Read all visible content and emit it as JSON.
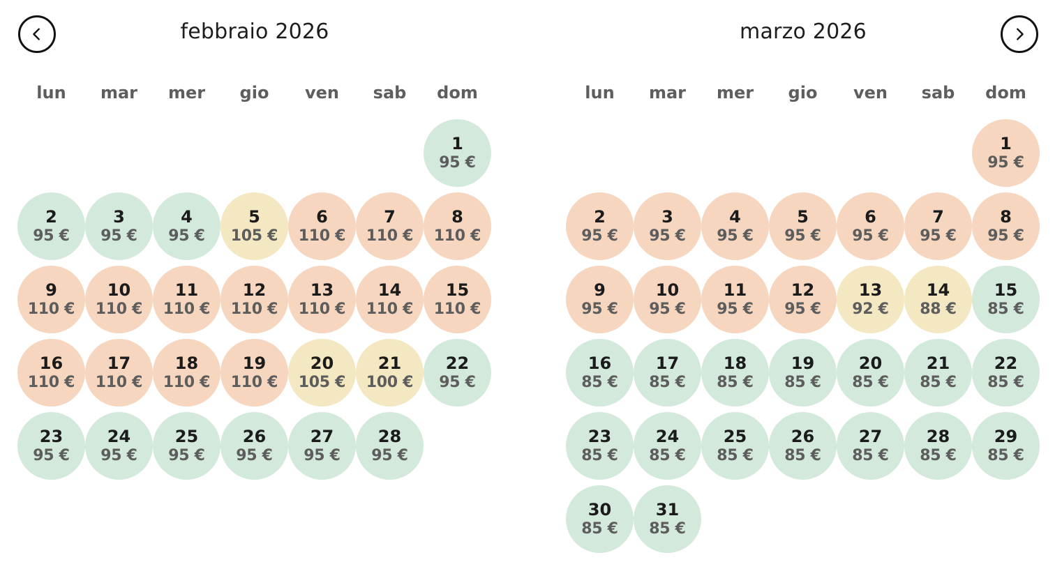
{
  "colors": {
    "green": "#d3e9dc",
    "orange": "#f6d6bf",
    "yellow": "#f4e8c2"
  },
  "nav": {
    "prev_icon": "chevron-left-icon",
    "next_icon": "chevron-right-icon"
  },
  "weekdays": [
    "lun",
    "mar",
    "mer",
    "gio",
    "ven",
    "sab",
    "dom"
  ],
  "months": [
    {
      "title": "febbraio 2026",
      "first_weekday_offset": 6,
      "days": [
        {
          "day": "1",
          "price": "95 €",
          "tier": "green"
        },
        {
          "day": "2",
          "price": "95 €",
          "tier": "green"
        },
        {
          "day": "3",
          "price": "95 €",
          "tier": "green"
        },
        {
          "day": "4",
          "price": "95 €",
          "tier": "green"
        },
        {
          "day": "5",
          "price": "105 €",
          "tier": "yellow"
        },
        {
          "day": "6",
          "price": "110 €",
          "tier": "orange"
        },
        {
          "day": "7",
          "price": "110 €",
          "tier": "orange"
        },
        {
          "day": "8",
          "price": "110 €",
          "tier": "orange"
        },
        {
          "day": "9",
          "price": "110 €",
          "tier": "orange"
        },
        {
          "day": "10",
          "price": "110 €",
          "tier": "orange"
        },
        {
          "day": "11",
          "price": "110 €",
          "tier": "orange"
        },
        {
          "day": "12",
          "price": "110 €",
          "tier": "orange"
        },
        {
          "day": "13",
          "price": "110 €",
          "tier": "orange"
        },
        {
          "day": "14",
          "price": "110 €",
          "tier": "orange"
        },
        {
          "day": "15",
          "price": "110 €",
          "tier": "orange"
        },
        {
          "day": "16",
          "price": "110 €",
          "tier": "orange"
        },
        {
          "day": "17",
          "price": "110 €",
          "tier": "orange"
        },
        {
          "day": "18",
          "price": "110 €",
          "tier": "orange"
        },
        {
          "day": "19",
          "price": "110 €",
          "tier": "orange"
        },
        {
          "day": "20",
          "price": "105 €",
          "tier": "yellow"
        },
        {
          "day": "21",
          "price": "100 €",
          "tier": "yellow"
        },
        {
          "day": "22",
          "price": "95 €",
          "tier": "green"
        },
        {
          "day": "23",
          "price": "95 €",
          "tier": "green"
        },
        {
          "day": "24",
          "price": "95 €",
          "tier": "green"
        },
        {
          "day": "25",
          "price": "95 €",
          "tier": "green"
        },
        {
          "day": "26",
          "price": "95 €",
          "tier": "green"
        },
        {
          "day": "27",
          "price": "95 €",
          "tier": "green"
        },
        {
          "day": "28",
          "price": "95 €",
          "tier": "green"
        }
      ]
    },
    {
      "title": "marzo 2026",
      "first_weekday_offset": 6,
      "days": [
        {
          "day": "1",
          "price": "95 €",
          "tier": "orange"
        },
        {
          "day": "2",
          "price": "95 €",
          "tier": "orange"
        },
        {
          "day": "3",
          "price": "95 €",
          "tier": "orange"
        },
        {
          "day": "4",
          "price": "95 €",
          "tier": "orange"
        },
        {
          "day": "5",
          "price": "95 €",
          "tier": "orange"
        },
        {
          "day": "6",
          "price": "95 €",
          "tier": "orange"
        },
        {
          "day": "7",
          "price": "95 €",
          "tier": "orange"
        },
        {
          "day": "8",
          "price": "95 €",
          "tier": "orange"
        },
        {
          "day": "9",
          "price": "95 €",
          "tier": "orange"
        },
        {
          "day": "10",
          "price": "95 €",
          "tier": "orange"
        },
        {
          "day": "11",
          "price": "95 €",
          "tier": "orange"
        },
        {
          "day": "12",
          "price": "95 €",
          "tier": "orange"
        },
        {
          "day": "13",
          "price": "92 €",
          "tier": "yellow"
        },
        {
          "day": "14",
          "price": "88 €",
          "tier": "yellow"
        },
        {
          "day": "15",
          "price": "85 €",
          "tier": "green"
        },
        {
          "day": "16",
          "price": "85 €",
          "tier": "green"
        },
        {
          "day": "17",
          "price": "85 €",
          "tier": "green"
        },
        {
          "day": "18",
          "price": "85 €",
          "tier": "green"
        },
        {
          "day": "19",
          "price": "85 €",
          "tier": "green"
        },
        {
          "day": "20",
          "price": "85 €",
          "tier": "green"
        },
        {
          "day": "21",
          "price": "85 €",
          "tier": "green"
        },
        {
          "day": "22",
          "price": "85 €",
          "tier": "green"
        },
        {
          "day": "23",
          "price": "85 €",
          "tier": "green"
        },
        {
          "day": "24",
          "price": "85 €",
          "tier": "green"
        },
        {
          "day": "25",
          "price": "85 €",
          "tier": "green"
        },
        {
          "day": "26",
          "price": "85 €",
          "tier": "green"
        },
        {
          "day": "27",
          "price": "85 €",
          "tier": "green"
        },
        {
          "day": "28",
          "price": "85 €",
          "tier": "green"
        },
        {
          "day": "29",
          "price": "85 €",
          "tier": "green"
        },
        {
          "day": "30",
          "price": "85 €",
          "tier": "green"
        },
        {
          "day": "31",
          "price": "85 €",
          "tier": "green"
        }
      ]
    }
  ]
}
